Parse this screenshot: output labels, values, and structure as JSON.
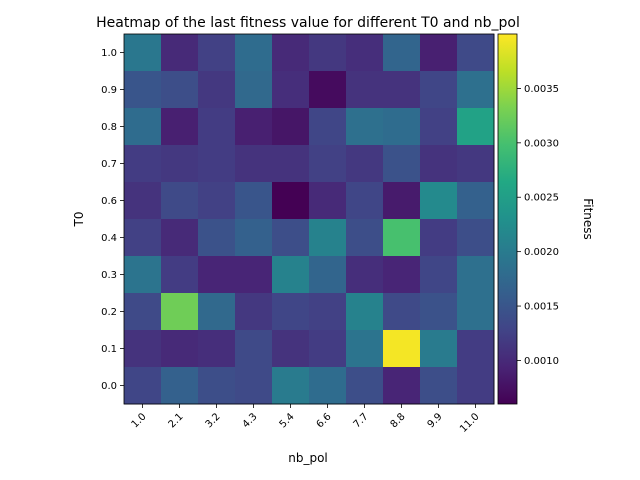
{
  "chart_data": {
    "type": "heatmap",
    "title": "Heatmap of the last fitness value for different T0 and nb_pol",
    "xlabel": "nb_pol",
    "ylabel": "T0",
    "x_labels": [
      "1.0",
      "2.1",
      "3.2",
      "4.3",
      "5.4",
      "6.6",
      "7.7",
      "8.8",
      "9.9",
      "11.0"
    ],
    "y_labels": [
      "1.0",
      "0.9",
      "0.8",
      "0.7",
      "0.6",
      "0.4",
      "0.3",
      "0.2",
      "0.1",
      "0.0"
    ],
    "values": [
      [
        0.00195,
        0.001,
        0.00125,
        0.0018,
        0.001,
        0.00115,
        0.00105,
        0.0017,
        0.0009,
        0.00135
      ],
      [
        0.0015,
        0.0014,
        0.00115,
        0.00175,
        0.00105,
        0.0007,
        0.0011,
        0.0011,
        0.0013,
        0.00185
      ],
      [
        0.0018,
        0.0009,
        0.0012,
        0.0009,
        0.0008,
        0.0013,
        0.00185,
        0.0018,
        0.00125,
        0.00255
      ],
      [
        0.0012,
        0.00115,
        0.0012,
        0.0011,
        0.0011,
        0.00125,
        0.00115,
        0.00145,
        0.0011,
        0.00115
      ],
      [
        0.0011,
        0.00135,
        0.00125,
        0.0015,
        0.0006,
        0.001,
        0.0013,
        0.00085,
        0.0022,
        0.00165
      ],
      [
        0.00125,
        0.001,
        0.00145,
        0.00165,
        0.0014,
        0.0021,
        0.0014,
        0.003,
        0.0012,
        0.0014
      ],
      [
        0.0019,
        0.0012,
        0.00095,
        0.00095,
        0.0021,
        0.0017,
        0.00105,
        0.00095,
        0.0013,
        0.00185
      ],
      [
        0.00135,
        0.00325,
        0.00175,
        0.00115,
        0.0013,
        0.00125,
        0.0021,
        0.00135,
        0.00145,
        0.00185
      ],
      [
        0.0011,
        0.001,
        0.00105,
        0.00135,
        0.0011,
        0.0012,
        0.0019,
        0.00395,
        0.002,
        0.0012
      ],
      [
        0.0013,
        0.00165,
        0.0014,
        0.00135,
        0.002,
        0.0018,
        0.0014,
        0.00095,
        0.0014,
        0.0012
      ]
    ],
    "colormap": "viridis",
    "vmin": 0.0006,
    "vmax": 0.004,
    "colorbar": {
      "label": "Fitness",
      "ticks": [
        0.001,
        0.0015,
        0.002,
        0.0025,
        0.003,
        0.0035
      ],
      "tick_labels": [
        "0.0010",
        "0.0015",
        "0.0020",
        "0.0025",
        "0.0030",
        "0.0035"
      ]
    },
    "grid": false,
    "legend": "none"
  }
}
